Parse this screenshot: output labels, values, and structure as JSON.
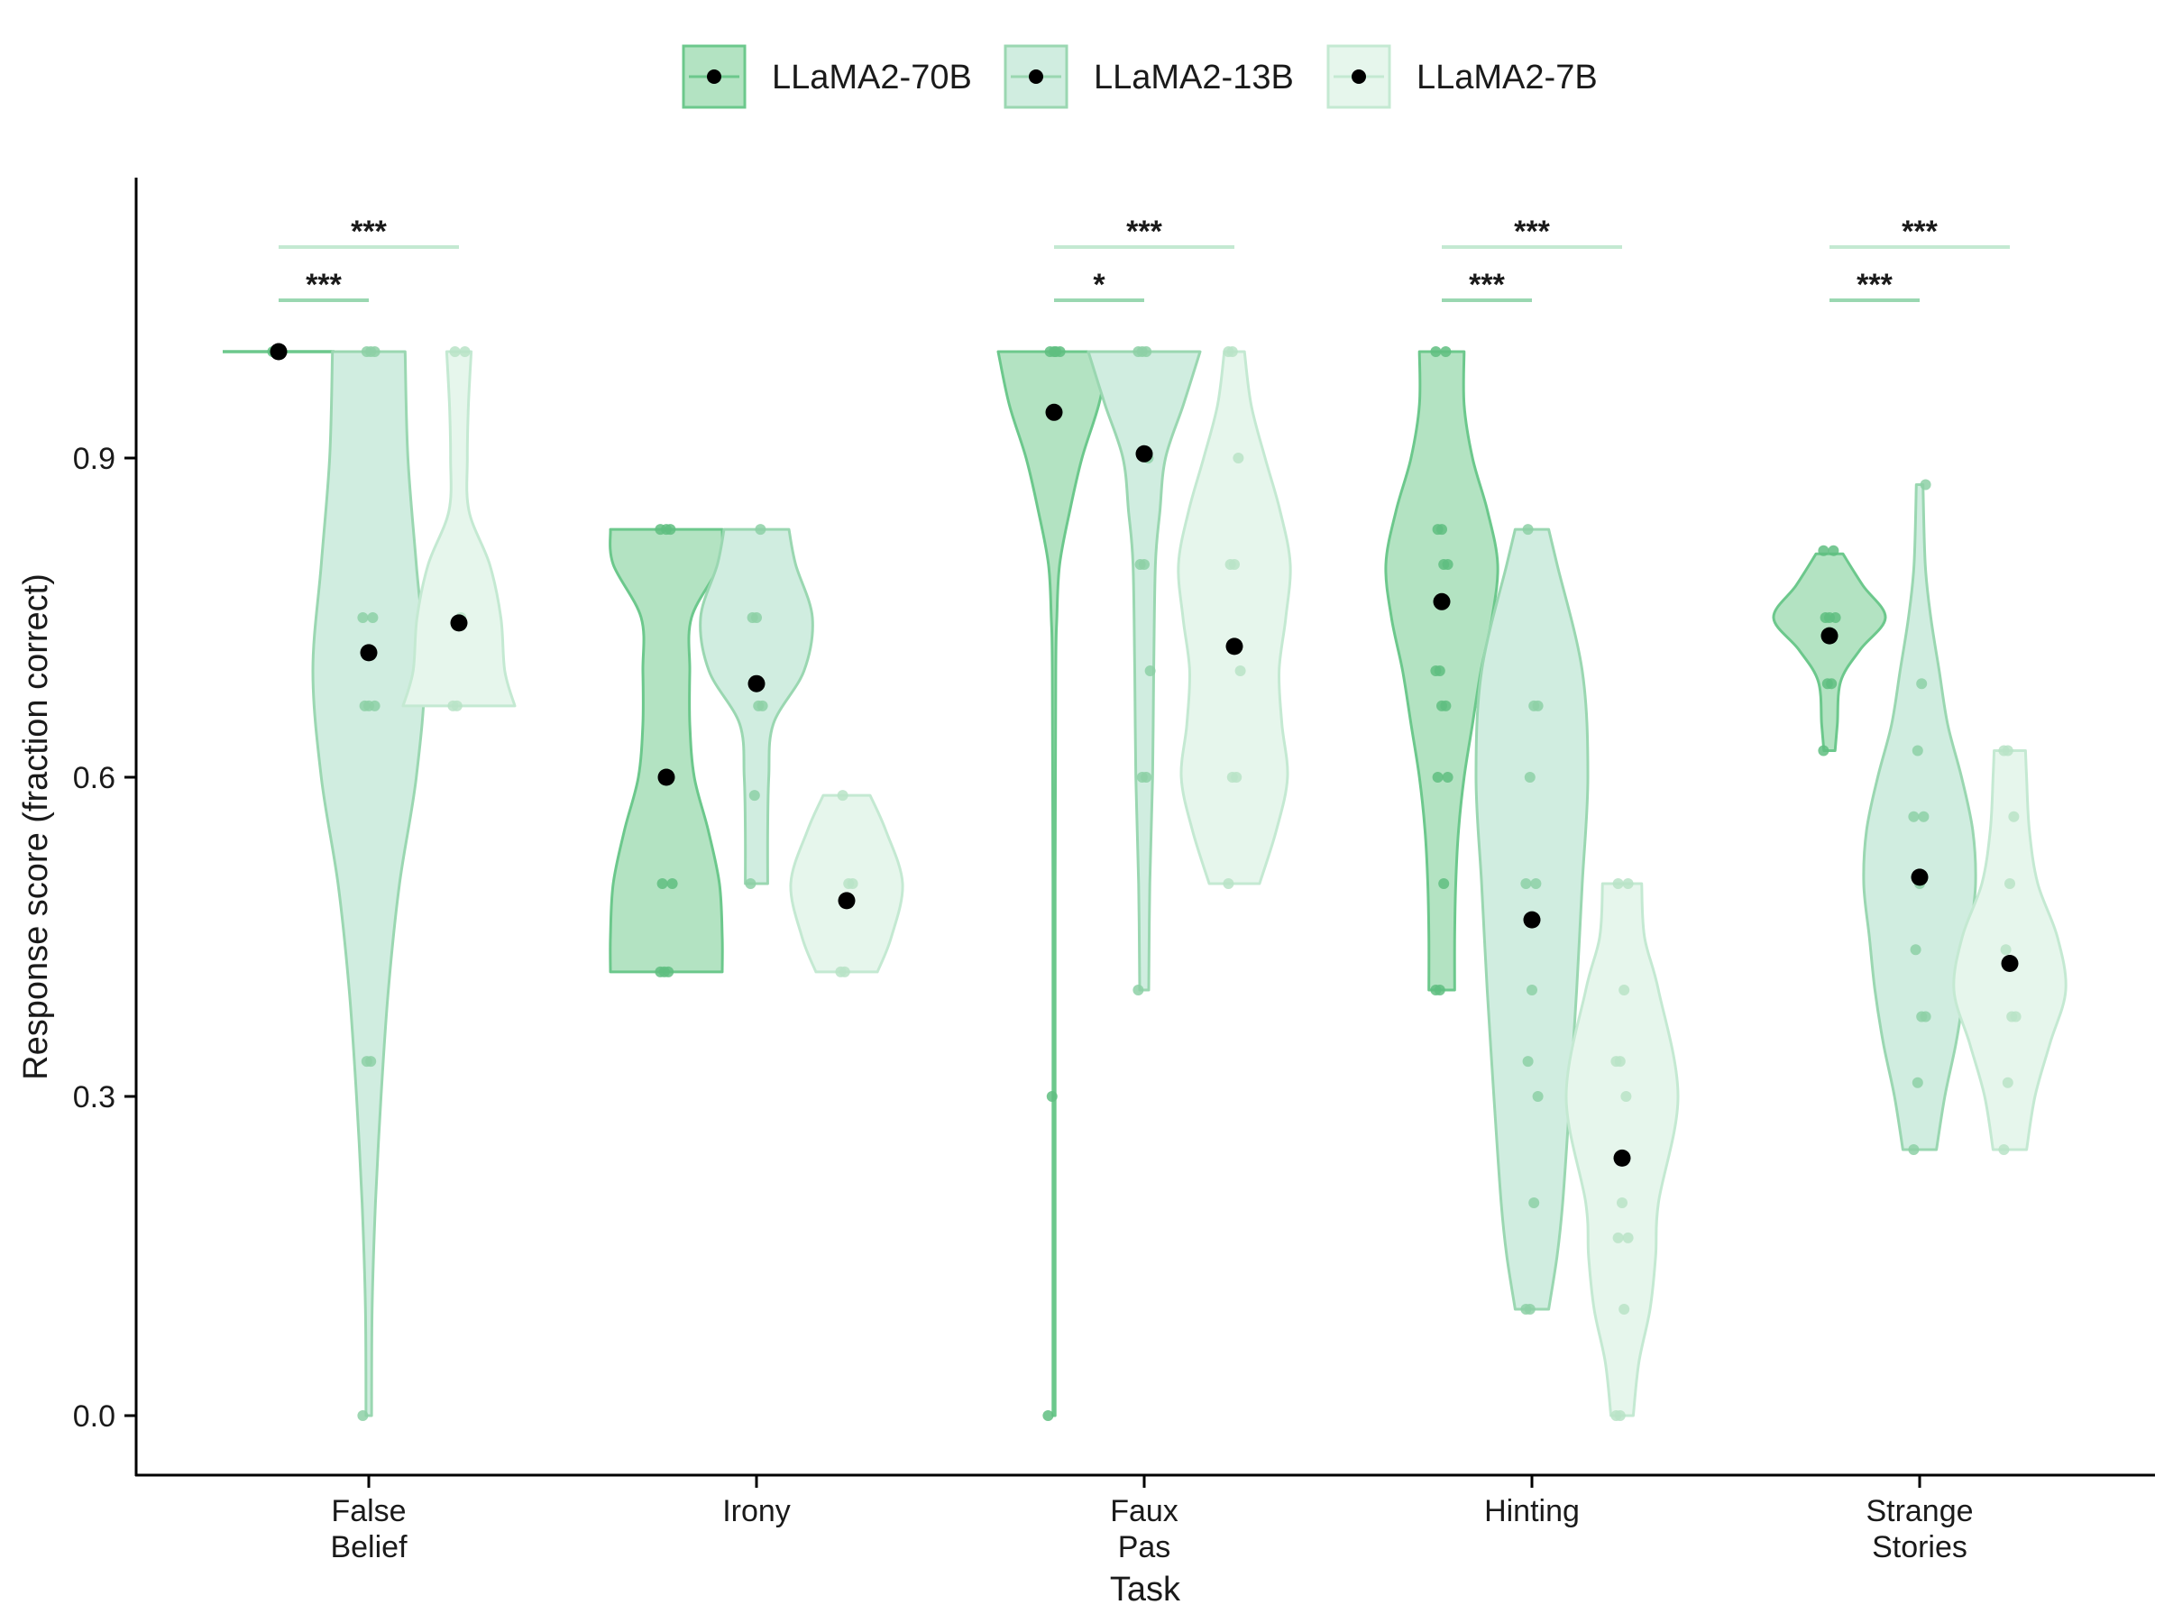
{
  "chart_data": {
    "type": "violin",
    "xlabel": "Task",
    "ylabel": "Response score (fraction correct)",
    "ylim": [
      -0.054,
      1.12
    ],
    "yticks": [
      0.0,
      0.3,
      0.6,
      0.9
    ],
    "ytick_labels": [
      "0.0",
      "0.3",
      "0.6",
      "0.9"
    ],
    "grid": false,
    "legend_position": "top",
    "categories": [
      {
        "lines": [
          "False",
          "Belief"
        ]
      },
      {
        "lines": [
          "Irony"
        ]
      },
      {
        "lines": [
          "Faux",
          "Pas"
        ]
      },
      {
        "lines": [
          "Hinting"
        ]
      },
      {
        "lines": [
          "Strange",
          "Stories"
        ]
      }
    ],
    "series": [
      {
        "name": "LLaMA2-70B",
        "fill": "#b3e3c2",
        "stroke": "#6cc88c",
        "points": "#5fbe80",
        "data": [
          {
            "mean": 1.0,
            "profile": [
              [
                1.0,
                1.0
              ],
              [
                1.0,
                1.0
              ]
            ],
            "points": [
              1.0,
              1.0,
              1.0
            ]
          },
          {
            "mean": 0.6,
            "profile": [
              [
                0.417,
                1.0
              ],
              [
                0.45,
                1.0
              ],
              [
                0.5,
                0.95
              ],
              [
                0.55,
                0.75
              ],
              [
                0.6,
                0.5
              ],
              [
                0.65,
                0.42
              ],
              [
                0.7,
                0.42
              ],
              [
                0.75,
                0.45
              ],
              [
                0.8,
                0.95
              ],
              [
                0.833,
                1.0
              ]
            ],
            "points": [
              0.417,
              0.417,
              0.417,
              0.5,
              0.5,
              0.833,
              0.833,
              0.833
            ]
          },
          {
            "mean": 0.943,
            "profile": [
              [
                0.0,
                0.02
              ],
              [
                0.2,
                0.02
              ],
              [
                0.5,
                0.02
              ],
              [
                0.7,
                0.03
              ],
              [
                0.75,
                0.05
              ],
              [
                0.8,
                0.1
              ],
              [
                0.85,
                0.28
              ],
              [
                0.9,
                0.5
              ],
              [
                0.95,
                0.8
              ],
              [
                1.0,
                1.0
              ]
            ],
            "points": [
              0.0,
              0.3,
              1.0,
              1.0,
              1.0,
              1.0
            ]
          },
          {
            "mean": 0.765,
            "profile": [
              [
                0.4,
                0.23
              ],
              [
                0.45,
                0.23
              ],
              [
                0.5,
                0.25
              ],
              [
                0.55,
                0.3
              ],
              [
                0.6,
                0.4
              ],
              [
                0.65,
                0.55
              ],
              [
                0.7,
                0.7
              ],
              [
                0.75,
                0.9
              ],
              [
                0.8,
                1.0
              ],
              [
                0.85,
                0.82
              ],
              [
                0.9,
                0.55
              ],
              [
                0.95,
                0.4
              ],
              [
                1.0,
                0.4
              ]
            ],
            "points": [
              0.4,
              0.4,
              0.5,
              0.6,
              0.6,
              0.667,
              0.667,
              0.7,
              0.7,
              0.8,
              0.8,
              0.833,
              0.833,
              1.0,
              1.0
            ]
          },
          {
            "mean": 0.733,
            "profile": [
              [
                0.625,
                0.1
              ],
              [
                0.65,
                0.14
              ],
              [
                0.69,
                0.2
              ],
              [
                0.72,
                0.55
              ],
              [
                0.75,
                1.0
              ],
              [
                0.78,
                0.6
              ],
              [
                0.81,
                0.24
              ]
            ],
            "points": [
              0.625,
              0.688,
              0.688,
              0.75,
              0.75,
              0.75,
              0.813,
              0.813
            ]
          }
        ]
      },
      {
        "name": "LLaMA2-13B",
        "fill": "#d0ede0",
        "stroke": "#9ad7b1",
        "points": "#8dd0a6",
        "data": [
          {
            "mean": 0.717,
            "profile": [
              [
                0.0,
                0.05
              ],
              [
                0.1,
                0.06
              ],
              [
                0.2,
                0.12
              ],
              [
                0.3,
                0.22
              ],
              [
                0.4,
                0.35
              ],
              [
                0.5,
                0.55
              ],
              [
                0.6,
                0.85
              ],
              [
                0.7,
                1.0
              ],
              [
                0.8,
                0.85
              ],
              [
                0.9,
                0.7
              ],
              [
                1.0,
                0.65
              ]
            ],
            "points": [
              0.0,
              0.333,
              0.333,
              0.667,
              0.667,
              0.667,
              0.75,
              0.75,
              1.0,
              1.0,
              1.0
            ]
          },
          {
            "mean": 0.688,
            "profile": [
              [
                0.5,
                0.2
              ],
              [
                0.55,
                0.2
              ],
              [
                0.6,
                0.22
              ],
              [
                0.65,
                0.3
              ],
              [
                0.7,
                0.85
              ],
              [
                0.75,
                1.0
              ],
              [
                0.8,
                0.7
              ],
              [
                0.833,
                0.58
              ]
            ],
            "points": [
              0.5,
              0.583,
              0.667,
              0.667,
              0.75,
              0.75,
              0.833
            ]
          },
          {
            "mean": 0.904,
            "profile": [
              [
                0.4,
                0.08
              ],
              [
                0.5,
                0.1
              ],
              [
                0.6,
                0.15
              ],
              [
                0.7,
                0.17
              ],
              [
                0.8,
                0.2
              ],
              [
                0.85,
                0.28
              ],
              [
                0.9,
                0.38
              ],
              [
                0.95,
                0.7
              ],
              [
                1.0,
                1.0
              ]
            ],
            "points": [
              0.4,
              0.6,
              0.6,
              0.7,
              0.8,
              0.8,
              0.9,
              1.0,
              1.0,
              1.0
            ]
          },
          {
            "mean": 0.466,
            "profile": [
              [
                0.1,
                0.3
              ],
              [
                0.15,
                0.45
              ],
              [
                0.2,
                0.55
              ],
              [
                0.3,
                0.68
              ],
              [
                0.4,
                0.8
              ],
              [
                0.5,
                0.9
              ],
              [
                0.6,
                1.0
              ],
              [
                0.7,
                0.9
              ],
              [
                0.8,
                0.45
              ],
              [
                0.833,
                0.3
              ]
            ],
            "points": [
              0.1,
              0.1,
              0.2,
              0.3,
              0.333,
              0.4,
              0.5,
              0.5,
              0.6,
              0.667,
              0.667,
              0.833
            ]
          },
          {
            "mean": 0.506,
            "profile": [
              [
                0.25,
                0.3
              ],
              [
                0.3,
                0.45
              ],
              [
                0.35,
                0.65
              ],
              [
                0.4,
                0.8
              ],
              [
                0.45,
                0.9
              ],
              [
                0.5,
                1.0
              ],
              [
                0.55,
                0.95
              ],
              [
                0.6,
                0.75
              ],
              [
                0.65,
                0.5
              ],
              [
                0.7,
                0.35
              ],
              [
                0.75,
                0.2
              ],
              [
                0.8,
                0.1
              ],
              [
                0.875,
                0.06
              ]
            ],
            "points": [
              0.25,
              0.313,
              0.375,
              0.375,
              0.438,
              0.5,
              0.563,
              0.563,
              0.625,
              0.688,
              0.875
            ]
          }
        ]
      },
      {
        "name": "LLaMA2-7B",
        "fill": "#e6f6ec",
        "stroke": "#c4e9d2",
        "points": "#b8e3c7",
        "data": [
          {
            "mean": 0.745,
            "profile": [
              [
                0.667,
                1.0
              ],
              [
                0.7,
                0.82
              ],
              [
                0.75,
                0.75
              ],
              [
                0.8,
                0.55
              ],
              [
                0.85,
                0.18
              ],
              [
                0.9,
                0.15
              ],
              [
                0.95,
                0.17
              ],
              [
                1.0,
                0.22
              ]
            ],
            "points": [
              0.667,
              0.667,
              0.75,
              1.0,
              1.0
            ]
          },
          {
            "mean": 0.484,
            "profile": [
              [
                0.417,
                0.55
              ],
              [
                0.45,
                0.8
              ],
              [
                0.5,
                1.0
              ],
              [
                0.55,
                0.7
              ],
              [
                0.583,
                0.42
              ]
            ],
            "points": [
              0.417,
              0.417,
              0.5,
              0.5,
              0.583
            ]
          },
          {
            "mean": 0.723,
            "profile": [
              [
                0.5,
                0.45
              ],
              [
                0.55,
                0.75
              ],
              [
                0.6,
                0.95
              ],
              [
                0.65,
                0.85
              ],
              [
                0.7,
                0.8
              ],
              [
                0.75,
                0.92
              ],
              [
                0.8,
                1.0
              ],
              [
                0.85,
                0.82
              ],
              [
                0.9,
                0.55
              ],
              [
                0.95,
                0.3
              ],
              [
                1.0,
                0.18
              ]
            ],
            "points": [
              0.5,
              0.6,
              0.6,
              0.7,
              0.8,
              0.8,
              0.9,
              1.0,
              1.0
            ]
          },
          {
            "mean": 0.242,
            "profile": [
              [
                0.0,
                0.2
              ],
              [
                0.05,
                0.3
              ],
              [
                0.1,
                0.5
              ],
              [
                0.15,
                0.6
              ],
              [
                0.2,
                0.65
              ],
              [
                0.3,
                1.0
              ],
              [
                0.4,
                0.65
              ],
              [
                0.45,
                0.4
              ],
              [
                0.5,
                0.35
              ]
            ],
            "points": [
              0.0,
              0.0,
              0.1,
              0.167,
              0.167,
              0.2,
              0.3,
              0.333,
              0.333,
              0.4,
              0.5,
              0.5
            ]
          },
          {
            "mean": 0.425,
            "profile": [
              [
                0.25,
                0.3
              ],
              [
                0.3,
                0.45
              ],
              [
                0.35,
                0.72
              ],
              [
                0.4,
                1.0
              ],
              [
                0.45,
                0.85
              ],
              [
                0.5,
                0.5
              ],
              [
                0.55,
                0.35
              ],
              [
                0.6,
                0.3
              ],
              [
                0.625,
                0.28
              ]
            ],
            "points": [
              0.25,
              0.313,
              0.375,
              0.375,
              0.438,
              0.5,
              0.563,
              0.625,
              0.625
            ]
          }
        ]
      }
    ],
    "significance": [
      {
        "category": 0,
        "from": 0,
        "to": 1,
        "label": "***",
        "level": 1,
        "series": 1
      },
      {
        "category": 0,
        "from": 0,
        "to": 2,
        "label": "***",
        "level": 2,
        "series": 2
      },
      {
        "category": 2,
        "from": 0,
        "to": 1,
        "label": "*",
        "level": 1,
        "series": 1
      },
      {
        "category": 2,
        "from": 0,
        "to": 2,
        "label": "***",
        "level": 2,
        "series": 2
      },
      {
        "category": 3,
        "from": 0,
        "to": 1,
        "label": "***",
        "level": 1,
        "series": 1
      },
      {
        "category": 3,
        "from": 0,
        "to": 2,
        "label": "***",
        "level": 2,
        "series": 2
      },
      {
        "category": 4,
        "from": 0,
        "to": 1,
        "label": "***",
        "level": 1,
        "series": 1
      },
      {
        "category": 4,
        "from": 0,
        "to": 2,
        "label": "***",
        "level": 2,
        "series": 2
      }
    ]
  }
}
